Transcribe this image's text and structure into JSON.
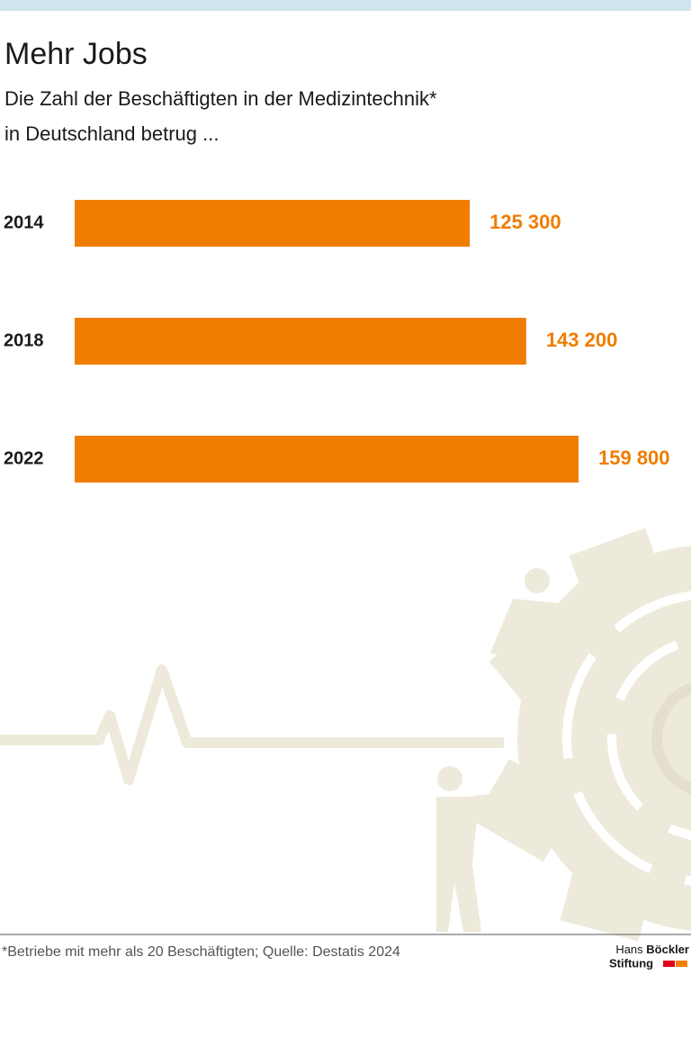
{
  "chart_data": {
    "type": "bar",
    "orientation": "horizontal",
    "title": "Mehr Jobs",
    "subtitle": [
      "Die Zahl der Beschäftigten in der Medizintechnik*",
      "in Deutschland betrug ..."
    ],
    "categories": [
      "2014",
      "2018",
      "2022"
    ],
    "values": [
      125300,
      143200,
      159800
    ],
    "value_labels": [
      "125 300",
      "143 200",
      "159 800"
    ],
    "color": "#f07d00",
    "footnote": "*Betriebe mit mehr als 20 Beschäftigten; Quelle: Destatis 2024",
    "logo": [
      "Hans",
      "Böckler",
      "Stiftung"
    ]
  }
}
